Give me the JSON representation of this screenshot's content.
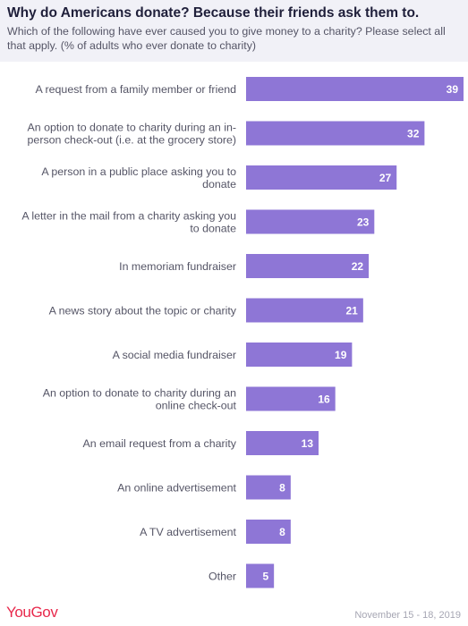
{
  "header": {
    "title": "Why do Americans donate? Because their friends ask them to.",
    "subtitle": "Which of the following have ever caused you to give money to a charity? Please select all that apply. (% of adults who ever donate to charity)"
  },
  "footer": {
    "brand": "YouGov",
    "date": "November 15 - 18, 2019"
  },
  "colors": {
    "bar": "#8e76d6",
    "label_text": "#555566",
    "value_text": "#ffffff",
    "header_bg": "#f1f1f7",
    "brand": "#e8294c"
  },
  "chart_data": {
    "type": "bar",
    "orientation": "horizontal",
    "categories": [
      "A request from a family member or friend",
      "An option to donate to charity during an in-person check-out (i.e. at the grocery store)",
      "A person in a public place asking you to donate",
      "A letter in the mail from a charity asking you to donate",
      "In memoriam fundraiser",
      "A news story about the topic or charity",
      "A social media fundraiser",
      "An option to donate to charity during an online check-out",
      "An email request from a charity",
      "An online advertisement",
      "A TV advertisement",
      "Other"
    ],
    "category_lines": [
      [
        "A request from a family member or friend"
      ],
      [
        "An option to donate to charity during an in-",
        "person check-out (i.e. at the grocery store)"
      ],
      [
        "A person in a public place asking you to",
        "donate"
      ],
      [
        "A letter in the mail from a charity asking you",
        "to donate"
      ],
      [
        "In memoriam fundraiser"
      ],
      [
        "A news story about the topic or charity"
      ],
      [
        "A social media fundraiser"
      ],
      [
        "An option to donate to charity during an",
        "online check-out"
      ],
      [
        "An email request from a charity"
      ],
      [
        "An online advertisement"
      ],
      [
        "A TV advertisement"
      ],
      [
        "Other"
      ]
    ],
    "values": [
      39,
      32,
      27,
      23,
      22,
      21,
      19,
      16,
      13,
      8,
      8,
      5
    ],
    "xlim": [
      0,
      39
    ],
    "grid": false,
    "legend": "none"
  }
}
